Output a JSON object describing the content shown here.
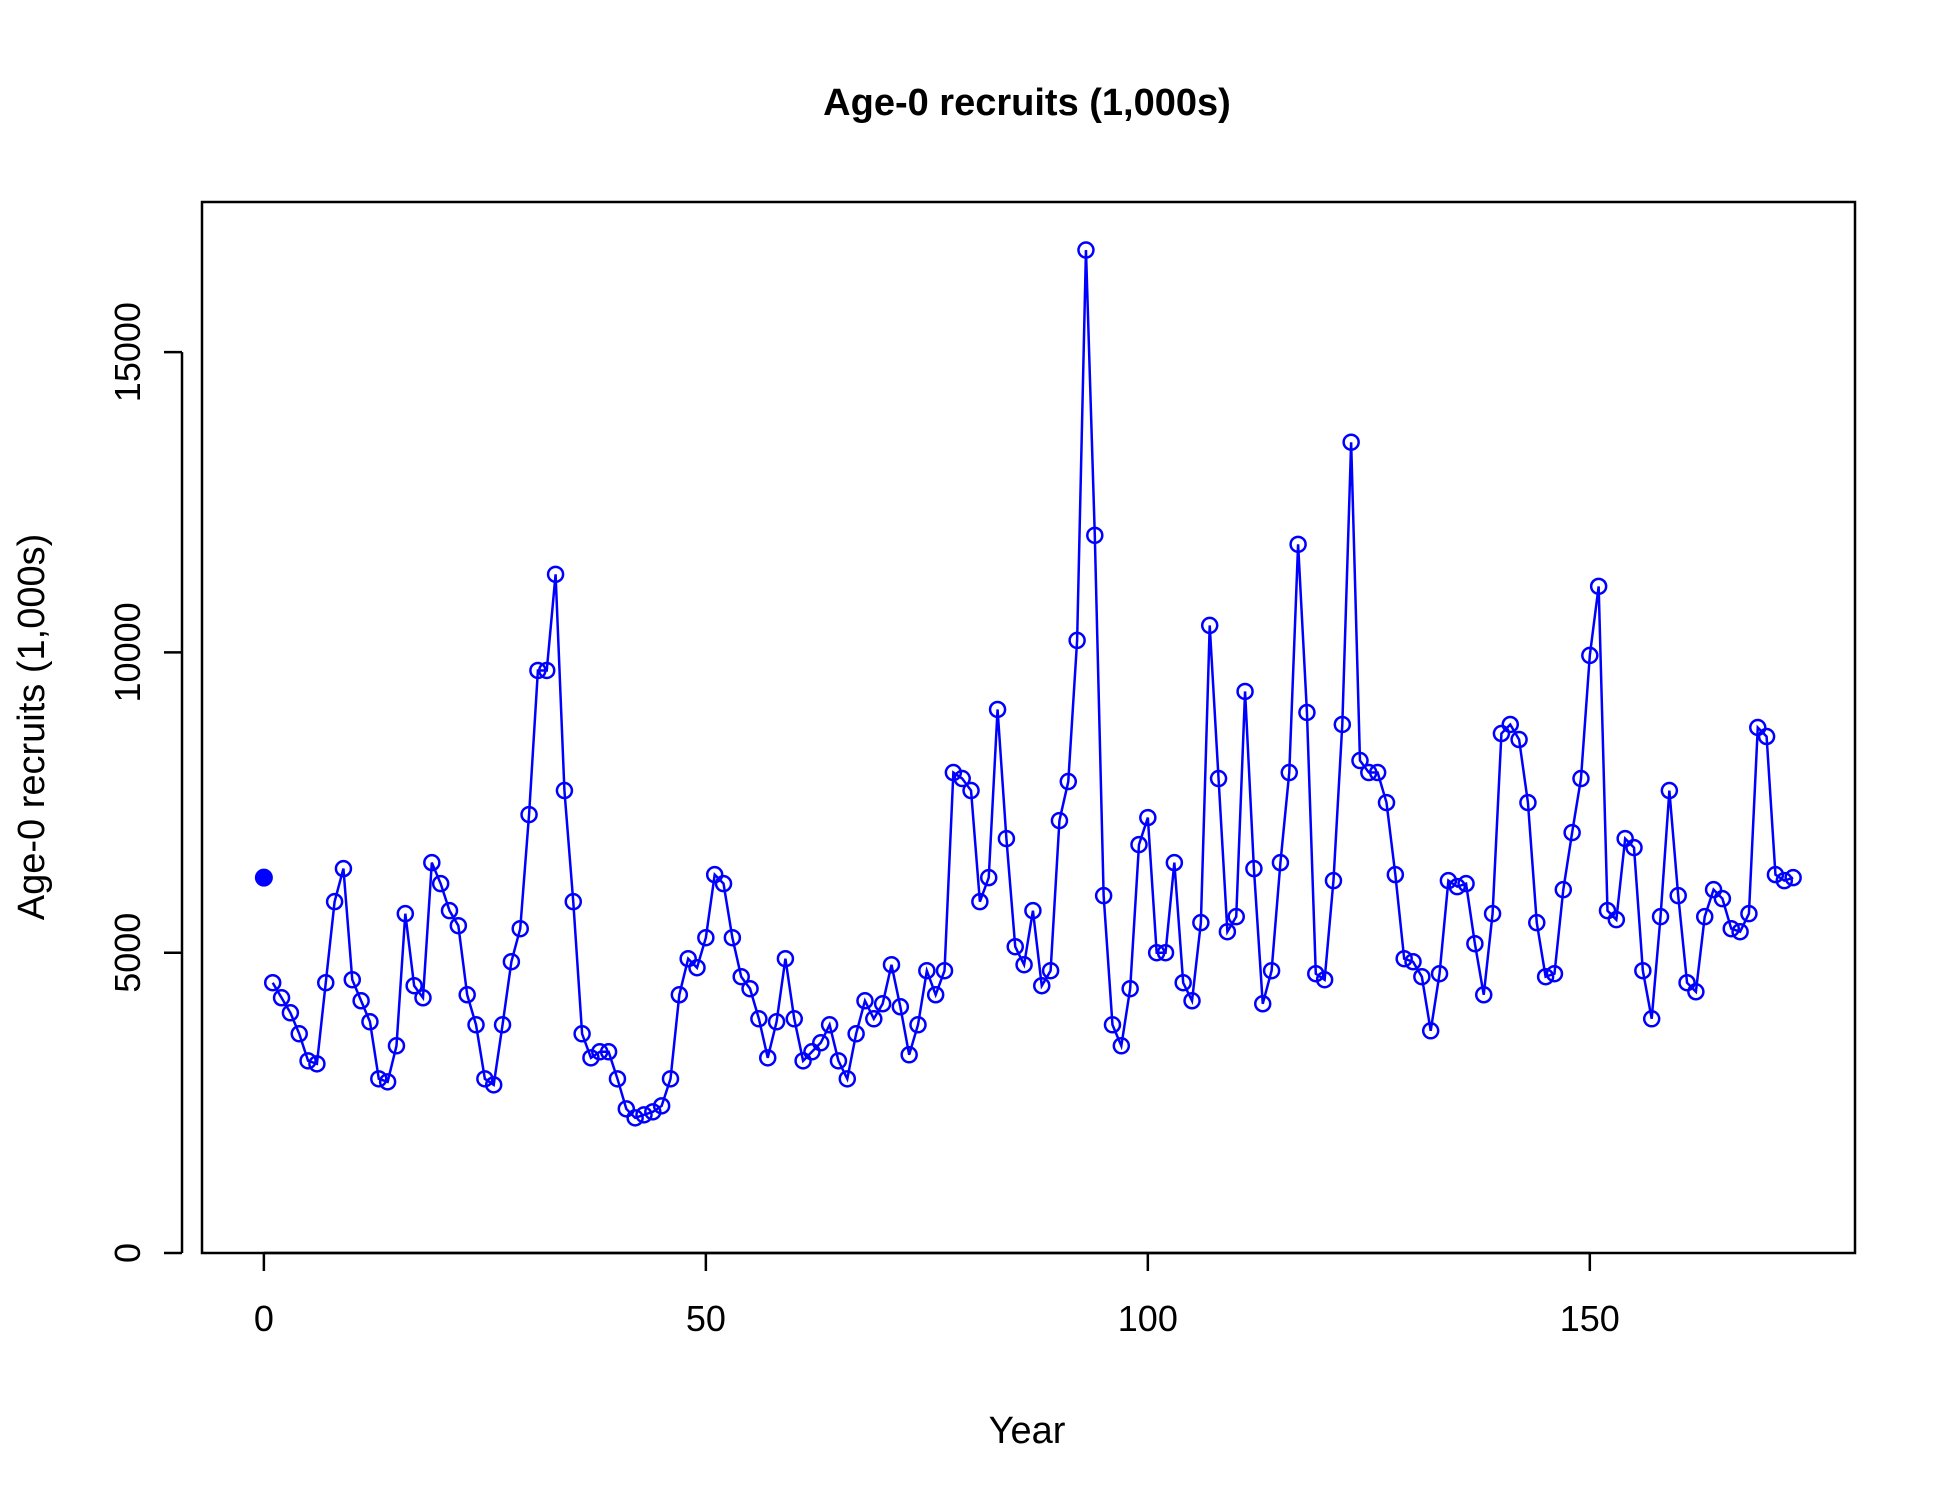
{
  "chart_data": {
    "type": "line",
    "title": "Age-0 recruits (1,000s)",
    "xlabel": "Year",
    "ylabel": "Age-0 recruits (1,000s)",
    "xlim": [
      -7,
      180
    ],
    "ylim": [
      0,
      17500
    ],
    "x_ticks": [
      0,
      50,
      100,
      150
    ],
    "y_ticks": [
      0,
      5000,
      10000,
      15000
    ],
    "x_tick_labels": [
      "0",
      "50",
      "100",
      "150"
    ],
    "y_tick_labels": [
      "0",
      "5000",
      "10000",
      "15000"
    ],
    "grid": false,
    "legend": "none",
    "series": [
      {
        "color": "#0000ff",
        "marker": "open-circle",
        "x": [
          1,
          2,
          3,
          4,
          5,
          6,
          7,
          8,
          9,
          10,
          11,
          12,
          13,
          14,
          15,
          16,
          17,
          18,
          19,
          20,
          21,
          22,
          23,
          24,
          25,
          26,
          27,
          28,
          29,
          30,
          31,
          32,
          33,
          34,
          35,
          36,
          37,
          38,
          39,
          40,
          41,
          42,
          43,
          44,
          45,
          46,
          47,
          48,
          49,
          50,
          51,
          52,
          53,
          54,
          55,
          56,
          57,
          58,
          59,
          60,
          61,
          62,
          63,
          64,
          65,
          66,
          67,
          68,
          69,
          70,
          71,
          72,
          73,
          74,
          75,
          76,
          77,
          78,
          79,
          80,
          81,
          82,
          83,
          84,
          85,
          86,
          87,
          88,
          89,
          90,
          91,
          92,
          93,
          94,
          95,
          96,
          97,
          98,
          99,
          100,
          101,
          102,
          103,
          104,
          105,
          106,
          107,
          108,
          109,
          110,
          111,
          112,
          113,
          114,
          115,
          116,
          117,
          118,
          119,
          120,
          121,
          122,
          123,
          124,
          125,
          126,
          127,
          128,
          129,
          130,
          131,
          132,
          133,
          134,
          135,
          136,
          137,
          138,
          139,
          140,
          141,
          142,
          143,
          144,
          145,
          146,
          147,
          148,
          149,
          150,
          151,
          152,
          153,
          154,
          155,
          156,
          157,
          158,
          159,
          160,
          161,
          162,
          163,
          164,
          165,
          166,
          167,
          168,
          169,
          170,
          171,
          172,
          173
        ],
        "y": [
          4500,
          4250,
          4000,
          3650,
          3200,
          3150,
          4500,
          5850,
          6400,
          4550,
          4200,
          3850,
          2900,
          2850,
          3450,
          5650,
          4450,
          4250,
          6500,
          6150,
          5700,
          5450,
          4300,
          3800,
          2900,
          2800,
          3800,
          4850,
          5400,
          7300,
          9700,
          9700,
          11300,
          7700,
          5850,
          3650,
          3250,
          3350,
          3350,
          2900,
          2400,
          2250,
          2300,
          2350,
          2450,
          2900,
          4300,
          4900,
          4750,
          5250,
          6300,
          6150,
          5250,
          4600,
          4400,
          3900,
          3250,
          3850,
          4900,
          3900,
          3200,
          3350,
          3500,
          3800,
          3200,
          2900,
          3650,
          4200,
          3900,
          4150,
          4800,
          4100,
          3300,
          3800,
          4700,
          4300,
          4700,
          8000,
          7900,
          7700,
          5850,
          6250,
          9050,
          6900,
          5100,
          4800,
          5700,
          4450,
          4700,
          7200,
          7850,
          10200,
          16700,
          11950,
          5950,
          3800,
          3450,
          4400,
          6800,
          7250,
          5000,
          5000,
          6500,
          4500,
          4200,
          5500,
          10450,
          7900,
          5350,
          5600,
          9350,
          6400,
          4150,
          4700,
          6500,
          8000,
          11800,
          9000,
          4650,
          4550,
          6200,
          8800,
          13500,
          8200,
          8000,
          8000,
          7500,
          6300,
          4900,
          4850,
          4600,
          3700,
          4650,
          6200,
          6100,
          6150,
          5150,
          4300,
          5650,
          8650,
          8800,
          8550,
          7500,
          5500,
          4600,
          4650,
          6050,
          7000,
          7900,
          9950,
          11100,
          5700,
          5550,
          6900,
          6750,
          4700,
          3900,
          5600,
          7700,
          5950,
          4500,
          4350,
          5600,
          6050,
          5900,
          5400,
          5350,
          5650,
          8750,
          8600,
          6300,
          6200,
          6250
        ]
      },
      {
        "color": "#0000ff",
        "marker": "filled-circle",
        "x": [
          0
        ],
        "y": [
          6250
        ]
      }
    ]
  }
}
